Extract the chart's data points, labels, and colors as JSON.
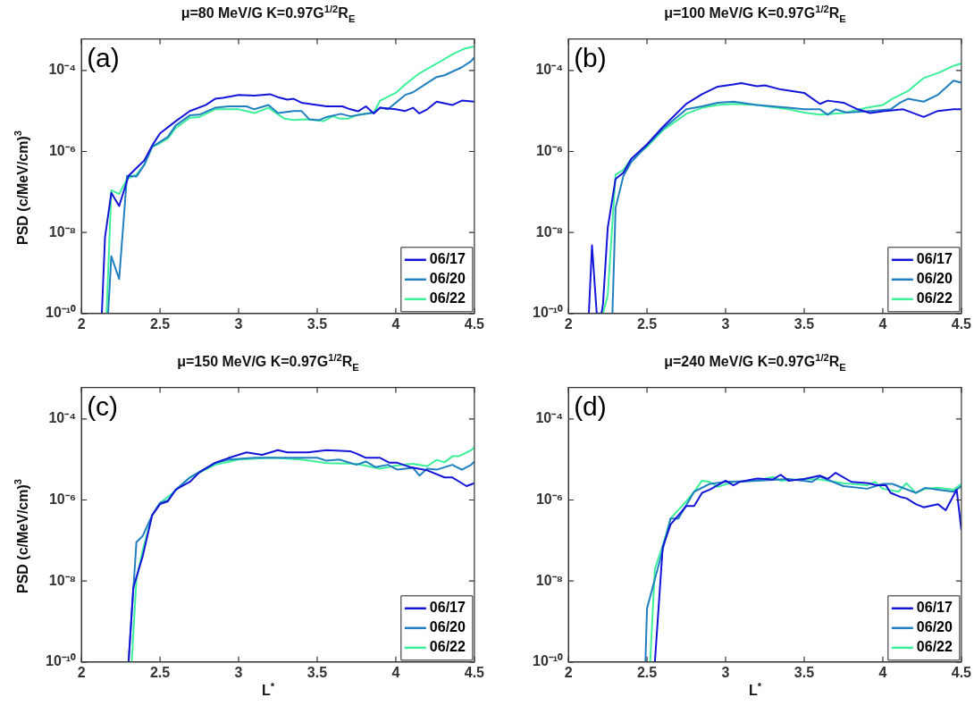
{
  "chart_data": [
    {
      "type": "line",
      "title": "μ=80 MeV/G K=0.97G$^{1/2}$R$_{E}$",
      "ylabel": "PSD (c/MeV/cm)$^{3}$",
      "annotations": [
        "(a)"
      ],
      "log": "y",
      "legend": "bottom right",
      "marker": "none",
      "xlim": [
        2,
        4.5
      ],
      "xticks": [
        2,
        2.5,
        3,
        3.5,
        4,
        4.5
      ],
      "ylim": [
        1e-10,
        0.0006
      ],
      "yticks": [
        {
          "value": 1e-10,
          "label": "10⁻¹⁰"
        },
        {
          "value": 1e-08,
          "label": "10⁻⁸"
        },
        {
          "value": 1e-06,
          "label": "10⁻⁶"
        },
        {
          "value": 0.0001,
          "label": "10⁻⁴"
        }
      ],
      "series": [
        {
          "name": "06/17",
          "color": "#1414d8",
          "x": [
            2.13,
            2.15,
            2.19,
            2.24,
            2.3,
            2.35,
            2.4,
            2.45,
            2.5,
            2.6,
            2.69,
            2.79,
            2.85,
            2.9,
            3.0,
            3.1,
            3.2,
            3.25,
            3.31,
            3.35,
            3.4,
            3.5,
            3.56,
            3.66,
            3.71,
            3.76,
            3.81,
            3.86,
            3.9,
            4.0,
            4.06,
            4.11,
            4.15,
            4.2,
            4.26,
            4.36,
            4.42,
            4.5
          ],
          "values": [
            1e-10,
            7.6e-09,
            9.5e-08,
            4.5e-08,
            2.5e-07,
            3.9e-07,
            6e-07,
            1.4e-06,
            2.8e-06,
            5.6e-06,
            1e-05,
            1.4e-05,
            2e-05,
            2.1e-05,
            2.5e-05,
            2.4e-05,
            2.6e-05,
            2.2e-05,
            1.9e-05,
            2e-05,
            1.6e-05,
            1.4e-05,
            1.3e-05,
            1.3e-05,
            1.1e-05,
            9.8e-06,
            1.3e-05,
            8.7e-06,
            1.2e-05,
            1.1e-05,
            1e-05,
            1.2e-05,
            8.7e-06,
            1.1e-05,
            1.7e-05,
            1.4e-05,
            1.8e-05,
            1.7e-05
          ]
        },
        {
          "name": "06/20",
          "color": "#1f7fc0",
          "x": [
            2.17,
            2.19,
            2.24,
            2.29,
            2.35,
            2.4,
            2.45,
            2.55,
            2.6,
            2.69,
            2.75,
            2.85,
            2.94,
            3.05,
            3.1,
            3.19,
            3.25,
            3.35,
            3.4,
            3.45,
            3.51,
            3.56,
            3.65,
            3.71,
            3.86,
            3.9,
            3.95,
            4.06,
            4.11,
            4.2,
            4.26,
            4.31,
            4.42,
            4.48,
            4.5
          ],
          "values": [
            1e-10,
            2.6e-09,
            7.1e-10,
            2.5e-07,
            2.4e-07,
            4.7e-07,
            1.3e-06,
            2.3e-06,
            4.4e-06,
            7.8e-06,
            8.1e-06,
            1.2e-05,
            1.3e-05,
            1.3e-05,
            1.1e-05,
            1.4e-05,
            8.9e-06,
            1e-05,
            1e-05,
            6.2e-06,
            5.9e-06,
            7.1e-06,
            8.5e-06,
            7.4e-06,
            9.1e-06,
            1.2e-05,
            1.1e-05,
            2.5e-05,
            2.9e-05,
            4.9e-05,
            6.9e-05,
            7.6e-05,
            0.00012,
            0.00017,
            0.00021
          ]
        },
        {
          "name": "06/22",
          "color": "#3cf09a",
          "x": [
            2.16,
            2.19,
            2.24,
            2.29,
            2.35,
            2.4,
            2.45,
            2.5,
            2.55,
            2.6,
            2.69,
            2.75,
            2.85,
            3.0,
            3.1,
            3.19,
            3.29,
            3.35,
            3.44,
            3.54,
            3.6,
            3.64,
            3.7,
            3.76,
            3.86,
            3.9,
            4.0,
            4.06,
            4.15,
            4.25,
            4.36,
            4.44,
            4.5
          ],
          "values": [
            1e-10,
            1.1e-07,
            8.9e-08,
            2.1e-07,
            2.7e-07,
            4.7e-07,
            1.3e-06,
            1.6e-06,
            2.1e-06,
            3.8e-06,
            6.8e-06,
            7.1e-06,
            1.1e-05,
            1.1e-05,
            8.9e-06,
            1.2e-05,
            6.5e-06,
            6e-06,
            6.2e-06,
            5.6e-06,
            7.4e-06,
            6.5e-06,
            6.5e-06,
            8.1e-06,
            9.1e-06,
            1.8e-05,
            2.8e-05,
            4.5e-05,
            8.5e-05,
            0.00014,
            0.00025,
            0.00035,
            0.00039
          ]
        }
      ]
    },
    {
      "type": "line",
      "title": "μ=100 MeV/G K=0.97G$^{1/2}$R$_{E}$",
      "annotations": [
        "(b)"
      ],
      "log": "y",
      "legend": "bottom right",
      "marker": "none",
      "xlim": [
        2,
        4.5
      ],
      "xticks": [
        2,
        2.5,
        3,
        3.5,
        4,
        4.5
      ],
      "ylim": [
        1e-10,
        0.0006
      ],
      "yticks": [
        {
          "value": 1e-10,
          "label": "10⁻¹⁰"
        },
        {
          "value": 1e-08,
          "label": "10⁻⁸"
        },
        {
          "value": 1e-06,
          "label": "10⁻⁶"
        },
        {
          "value": 0.0001,
          "label": "10⁻⁴"
        }
      ],
      "series": [
        {
          "name": "06/17",
          "color": "#1414d8",
          "x": [
            2.13,
            2.15,
            2.18,
            2.21,
            2.22,
            2.25,
            2.3,
            2.35,
            2.4,
            2.5,
            2.6,
            2.75,
            2.85,
            2.95,
            3.05,
            3.1,
            3.2,
            3.25,
            3.35,
            3.5,
            3.6,
            3.65,
            3.75,
            3.84,
            3.92,
            4.0,
            4.13,
            4.26,
            4.35,
            4.45,
            4.5
          ],
          "values": [
            1e-10,
            4.8e-09,
            1e-10,
            1e-10,
            1.7e-10,
            1.3e-08,
            2.1e-07,
            3e-07,
            6.6e-07,
            1.5e-06,
            4e-06,
            1.5e-05,
            2.6e-05,
            4e-05,
            4.5e-05,
            4.9e-05,
            4.1e-05,
            4.3e-05,
            3.4e-05,
            2.8e-05,
            1.5e-05,
            1.8e-05,
            1.6e-05,
            1.1e-05,
            8.9e-06,
            9.8e-06,
            1.1e-05,
            7.1e-06,
            1e-05,
            1.1e-05,
            1.1e-05
          ]
        },
        {
          "name": "06/20",
          "color": "#1f7fc0",
          "x": [
            2.28,
            2.3,
            2.35,
            2.4,
            2.5,
            2.6,
            2.75,
            2.85,
            2.95,
            3.05,
            3.2,
            3.4,
            3.5,
            3.6,
            3.65,
            3.7,
            3.77,
            3.92,
            4.05,
            4.11,
            4.16,
            4.26,
            4.35,
            4.45,
            4.5
          ],
          "values": [
            1e-10,
            4.1e-08,
            2.5e-07,
            5.5e-07,
            1.4e-06,
            3.6e-06,
            1.1e-05,
            1.3e-05,
            1.6e-05,
            1.7e-05,
            1.4e-05,
            1.2e-05,
            1.1e-05,
            1.1e-05,
            8.1e-06,
            1.1e-05,
            9.1e-06,
            1e-05,
            1.1e-05,
            1.6e-05,
            2e-05,
            1.7e-05,
            2.5e-05,
            5.6e-05,
            5e-05
          ]
        },
        {
          "name": "06/22",
          "color": "#3cf09a",
          "x": [
            2.22,
            2.25,
            2.3,
            2.35,
            2.4,
            2.5,
            2.6,
            2.75,
            2.85,
            2.95,
            3.05,
            3.2,
            3.4,
            3.5,
            3.6,
            3.75,
            3.9,
            4.0,
            4.06,
            4.16,
            4.26,
            4.36,
            4.45,
            4.5
          ],
          "values": [
            1e-10,
            2.8e-10,
            2.7e-07,
            3.5e-07,
            6.6e-07,
            1.3e-06,
            3.3e-06,
            8.5e-06,
            1.2e-05,
            1.4e-05,
            1.5e-05,
            1.4e-05,
            1.1e-05,
            9.1e-06,
            8.1e-06,
            8.9e-06,
            1.2e-05,
            1.4e-05,
            2e-05,
            3.1e-05,
            6.5e-05,
            8.9e-05,
            0.00013,
            0.00015
          ]
        }
      ]
    },
    {
      "type": "line",
      "title": "μ=150 MeV/G K=0.97G$^{1/2}$R$_{E}$",
      "ylabel": "PSD (c/MeV/cm)$^{3}$",
      "xlabel": "L$^{*}$",
      "annotations": [
        "(c)"
      ],
      "log": "y",
      "legend": "bottom right",
      "marker": "none",
      "xlim": [
        2,
        4.5
      ],
      "xticks": [
        2,
        2.5,
        3,
        3.5,
        4,
        4.5
      ],
      "ylim": [
        1e-10,
        0.0006
      ],
      "yticks": [
        {
          "value": 1e-10,
          "label": "10⁻¹⁰"
        },
        {
          "value": 1e-08,
          "label": "10⁻⁸"
        },
        {
          "value": 1e-06,
          "label": "10⁻⁶"
        },
        {
          "value": 0.0001,
          "label": "10⁻⁴"
        }
      ],
      "series": [
        {
          "name": "06/17",
          "color": "#1414d8",
          "x": [
            2.3,
            2.33,
            2.39,
            2.45,
            2.5,
            2.55,
            2.6,
            2.69,
            2.75,
            2.85,
            2.94,
            3.05,
            3.15,
            3.25,
            3.31,
            3.44,
            3.56,
            3.71,
            3.75,
            3.81,
            3.9,
            3.96,
            4.01,
            4.09,
            4.2,
            4.31,
            4.36,
            4.45,
            4.5
          ],
          "values": [
            1e-10,
            6.8e-09,
            4.1e-08,
            4.2e-07,
            7.9e-07,
            9.3e-07,
            1.8e-06,
            2.8e-06,
            4.8e-06,
            8.3e-06,
            1.1e-05,
            1.5e-05,
            1.3e-05,
            1.7e-05,
            1.5e-05,
            1.5e-05,
            1.7e-05,
            1.6e-05,
            1.4e-05,
            1.1e-05,
            1.1e-05,
            8.3e-06,
            8.3e-06,
            6.5e-06,
            5.4e-06,
            3.6e-06,
            3.6e-06,
            2.2e-06,
            2.6e-06
          ]
        },
        {
          "name": "06/20",
          "color": "#1f7fc0",
          "x": [
            2.3,
            2.35,
            2.39,
            2.45,
            2.5,
            2.55,
            2.6,
            2.69,
            2.75,
            2.85,
            2.94,
            3.1,
            3.21,
            3.4,
            3.5,
            3.56,
            3.64,
            3.75,
            3.81,
            3.87,
            3.95,
            4.01,
            4.11,
            4.15,
            4.2,
            4.26,
            4.36,
            4.42,
            4.48,
            4.5
          ],
          "values": [
            1e-10,
            9.1e-08,
            1.3e-07,
            4.2e-07,
            8.5e-07,
            9.8e-07,
            1.8e-06,
            3.6e-06,
            4.9e-06,
            8.1e-06,
            1e-05,
            1.1e-05,
            1.1e-05,
            1.1e-05,
            1.1e-05,
            9.3e-06,
            1e-05,
            7.4e-06,
            8.9e-06,
            6.5e-06,
            7.4e-06,
            5.6e-06,
            6.2e-06,
            4e-06,
            5.9e-06,
            5.6e-06,
            7.4e-06,
            5.6e-06,
            7.4e-06,
            8.9e-06
          ]
        },
        {
          "name": "06/22",
          "color": "#3cf09a",
          "x": [
            2.32,
            2.35,
            2.39,
            2.45,
            2.5,
            2.6,
            2.69,
            2.85,
            3.0,
            3.21,
            3.4,
            3.56,
            3.75,
            3.9,
            4.0,
            4.11,
            4.2,
            4.26,
            4.31,
            4.36,
            4.4,
            4.48,
            4.5
          ],
          "values": [
            1e-10,
            1.1e-08,
            5.9e-08,
            4.2e-07,
            8.5e-07,
            1.7e-06,
            3.6e-06,
            7.4e-06,
            1e-05,
            1.1e-05,
            1e-05,
            8.1e-06,
            7.8e-06,
            5.9e-06,
            7.1e-06,
            7.8e-06,
            6.8e-06,
            9.8e-06,
            8.5e-06,
            1.2e-05,
            1.2e-05,
            1.7e-05,
            2e-05
          ]
        }
      ]
    },
    {
      "type": "line",
      "title": "μ=240 MeV/G K=0.97G$^{1/2}$R$_{E}$",
      "xlabel": "L$^{*}$",
      "annotations": [
        "(d)"
      ],
      "log": "y",
      "legend": "bottom right",
      "marker": "none",
      "xlim": [
        2,
        4.5
      ],
      "xticks": [
        2,
        2.5,
        3,
        3.5,
        4,
        4.5
      ],
      "ylim": [
        1e-10,
        0.0006
      ],
      "yticks": [
        {
          "value": 1e-10,
          "label": "10⁻¹⁰"
        },
        {
          "value": 1e-08,
          "label": "10⁻⁸"
        },
        {
          "value": 1e-06,
          "label": "10⁻⁶"
        },
        {
          "value": 0.0001,
          "label": "10⁻⁴"
        }
      ],
      "series": [
        {
          "name": "06/17",
          "color": "#1414d8",
          "x": [
            2.55,
            2.6,
            2.65,
            2.7,
            2.75,
            2.8,
            2.85,
            2.9,
            3.0,
            3.05,
            3.09,
            3.2,
            3.3,
            3.35,
            3.4,
            3.5,
            3.6,
            3.65,
            3.7,
            3.8,
            3.91,
            3.96,
            4.02,
            4.05,
            4.11,
            4.15,
            4.21,
            4.26,
            4.35,
            4.4,
            4.47,
            4.5
          ],
          "values": [
            1e-10,
            6.9e-08,
            2.5e-07,
            4.2e-07,
            7.1e-07,
            7.1e-07,
            1.5e-06,
            1.8e-06,
            3e-06,
            2.3e-06,
            2.8e-06,
            3.4e-06,
            3.2e-06,
            4.2e-06,
            3e-06,
            3.3e-06,
            4e-06,
            3.3e-06,
            4.7e-06,
            2.8e-06,
            2.6e-06,
            2.3e-06,
            2.3e-06,
            1.5e-06,
            1.2e-06,
            1.1e-06,
            7.9e-07,
            6.6e-07,
            7.9e-07,
            5.6e-07,
            1.8e-06,
            1.8e-07
          ]
        },
        {
          "name": "06/20",
          "color": "#1f7fc0",
          "x": [
            2.49,
            2.5,
            2.6,
            2.65,
            2.7,
            2.8,
            2.9,
            3.0,
            3.2,
            3.4,
            3.55,
            3.6,
            3.75,
            3.9,
            4.0,
            4.06,
            4.21,
            4.27,
            4.35,
            4.45,
            4.5
          ],
          "values": [
            1e-10,
            2.1e-09,
            5.9e-08,
            3.5e-07,
            3.5e-07,
            1.6e-06,
            2.5e-06,
            2.8e-06,
            3e-06,
            3.3e-06,
            2.8e-06,
            3.8e-06,
            2.2e-06,
            1.9e-06,
            2.5e-06,
            2.5e-06,
            1.5e-06,
            2e-06,
            1.8e-06,
            1.6e-06,
            2.2e-06
          ]
        },
        {
          "name": "06/22",
          "color": "#3cf09a",
          "x": [
            2.52,
            2.55,
            2.6,
            2.65,
            2.75,
            2.8,
            2.85,
            2.9,
            2.95,
            3.05,
            3.2,
            3.3,
            3.35,
            3.5,
            3.6,
            3.75,
            3.9,
            3.95,
            4.0,
            4.1,
            4.15,
            4.21,
            4.27,
            4.35,
            4.45,
            4.5
          ],
          "values": [
            1e-10,
            2e-08,
            7.6e-08,
            3.5e-07,
            9.3e-07,
            1.6e-06,
            3e-06,
            2.8e-06,
            2.1e-06,
            2.8e-06,
            3e-06,
            3.7e-06,
            3e-06,
            3.3e-06,
            3.2e-06,
            2.6e-06,
            2.3e-06,
            2.8e-06,
            1.9e-06,
            1.6e-06,
            2.6e-06,
            1.5e-06,
            1.9e-06,
            2e-06,
            1.8e-06,
            2.5e-06
          ]
        }
      ]
    }
  ]
}
